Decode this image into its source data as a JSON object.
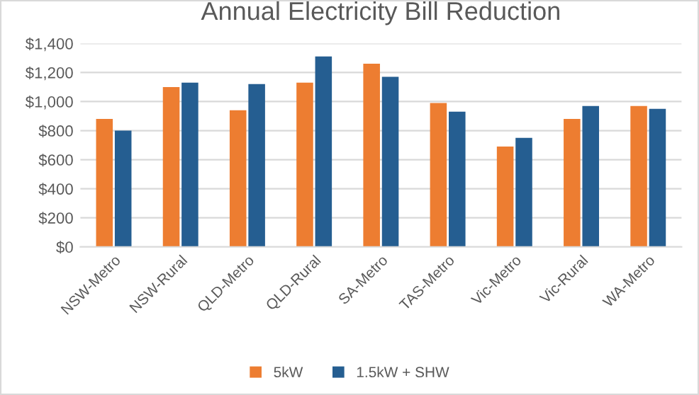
{
  "chart_data": {
    "type": "bar",
    "title": "Annual Electricity Bill Reduction",
    "categories": [
      "NSW-Metro",
      "NSW-Rural",
      "QLD-Metro",
      "QLD-Rural",
      "SA-Metro",
      "TAS-Metro",
      "Vic-Metro",
      "Vic-Rural",
      "WA-Metro"
    ],
    "series": [
      {
        "name": "5kW",
        "color": "#ed7d31",
        "values": [
          880,
          1100,
          940,
          1130,
          1260,
          990,
          690,
          880,
          970
        ]
      },
      {
        "name": "1.5kW + SHW",
        "color": "#255e91",
        "values": [
          800,
          1130,
          1120,
          1310,
          1170,
          930,
          750,
          970,
          950
        ]
      }
    ],
    "ylim": [
      0,
      1400
    ],
    "yticks": [
      {
        "value": 0,
        "label": "$0"
      },
      {
        "value": 200,
        "label": "$200"
      },
      {
        "value": 400,
        "label": "$400"
      },
      {
        "value": 600,
        "label": "$600"
      },
      {
        "value": 800,
        "label": "$800"
      },
      {
        "value": 1000,
        "label": "$1,000"
      },
      {
        "value": 1200,
        "label": "$1,200"
      },
      {
        "value": 1400,
        "label": "$1,400"
      }
    ],
    "grid": "y",
    "legend": "bottom"
  }
}
